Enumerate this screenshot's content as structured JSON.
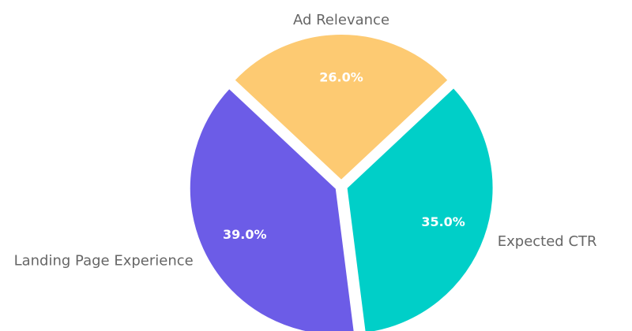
{
  "chart_data": {
    "type": "pie",
    "categories": [
      "Ad Relevance",
      "Expected CTR",
      "Landing Page Experience"
    ],
    "values": [
      26.0,
      35.0,
      39.0
    ],
    "value_labels": [
      "26.0%",
      "35.0%",
      "39.0%"
    ],
    "colors": [
      "#fdca72",
      "#00cfc8",
      "#6c5ce7"
    ]
  }
}
